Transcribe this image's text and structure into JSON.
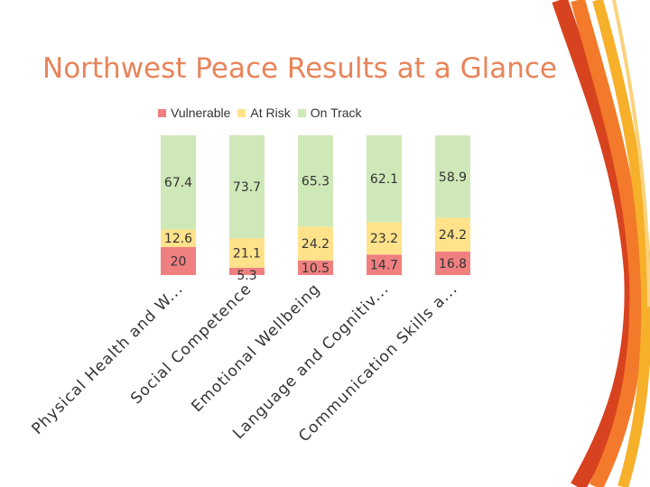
{
  "slide": {
    "title": "Northwest Peace Results at a Glance"
  },
  "colors": {
    "title": "#e8845a",
    "vulnerable": "#f08080",
    "at_risk": "#ffe28a",
    "on_track": "#cfe8b8",
    "ribbon_orange": "#f27a2a",
    "ribbon_red": "#e8452c",
    "ribbon_yellow": "#f7b02a"
  },
  "chart_data": {
    "type": "bar",
    "stacked": true,
    "percent_scale": true,
    "title": "Northwest Peace Results at a Glance",
    "legend_position": "top",
    "categories": [
      "Physical Health and W...",
      "Social Competence",
      "Emotional Wellbeing",
      "Language and Cognitiv...",
      "Communication Skills a..."
    ],
    "series": [
      {
        "name": "Vulnerable",
        "color": "#f08080",
        "values": [
          20,
          5.3,
          10.5,
          14.7,
          16.8
        ]
      },
      {
        "name": "At Risk",
        "color": "#ffe28a",
        "values": [
          12.6,
          21.1,
          24.2,
          23.2,
          24.2
        ]
      },
      {
        "name": "On Track",
        "color": "#cfe8b8",
        "values": [
          67.4,
          73.7,
          65.3,
          62.1,
          58.9
        ]
      }
    ],
    "ylim": [
      0,
      100
    ],
    "xlabel": "",
    "ylabel": "",
    "grid": false
  }
}
